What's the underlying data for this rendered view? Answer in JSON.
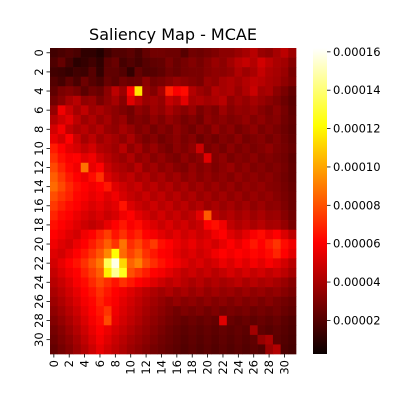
{
  "chart_data": {
    "type": "heatmap",
    "title": "Saliency Map - MCAE",
    "xlabel": "",
    "ylabel": "",
    "rows": 32,
    "cols": 32,
    "x_tick_labels": [
      "0",
      "2",
      "4",
      "6",
      "8",
      "10",
      "12",
      "14",
      "16",
      "18",
      "20",
      "22",
      "24",
      "26",
      "28",
      "30"
    ],
    "y_tick_labels": [
      "0",
      "2",
      "4",
      "6",
      "8",
      "10",
      "12",
      "14",
      "16",
      "18",
      "20",
      "22",
      "24",
      "26",
      "28",
      "30"
    ],
    "colormap": "hot",
    "colorbar": {
      "min": 2.5e-06,
      "max": 0.000162,
      "tick_labels": [
        "0.00002",
        "0.00004",
        "0.00006",
        "0.00008",
        "0.00010",
        "0.00012",
        "0.00014",
        "0.00016"
      ],
      "tick_values": [
        2e-05,
        4e-05,
        6e-05,
        8e-05,
        0.0001,
        0.00012,
        0.00014,
        0.00016
      ]
    },
    "values": [
      [
        1.5e-05,
        1.7e-05,
        1.9e-05,
        1.7e-05,
        1.1e-05,
        1.1e-05,
        8e-06,
        1.5e-05,
        1.9e-05,
        1.9e-05,
        2.1e-05,
        1.7e-05,
        2.3e-05,
        2.6e-05,
        2.6e-05,
        2.5e-05,
        2.5e-05,
        2e-05,
        2.6e-05,
        2.5e-05,
        2.7e-05,
        2.9e-05,
        3.2e-05,
        3.2e-05,
        3.5e-05,
        3.8e-05,
        4.2e-05,
        3.5e-05,
        3.3e-05,
        3.8e-05,
        4.3e-05,
        3.6e-05
      ],
      [
        1.8e-05,
        2.3e-05,
        1.6e-05,
        1e-05,
        1.2e-05,
        1.5e-05,
        1.1e-05,
        2.1e-05,
        2.4e-05,
        1.6e-05,
        1.9e-05,
        1.6e-05,
        2e-05,
        2.2e-05,
        2.3e-05,
        2.8e-05,
        2.4e-05,
        2.7e-05,
        3e-05,
        2.7e-05,
        3.1e-05,
        3.5e-05,
        3.2e-05,
        3.7e-05,
        4.2e-05,
        4.5e-05,
        4.1e-05,
        4.8e-05,
        4.3e-05,
        3.9e-05,
        3.7e-05,
        3.1e-05
      ],
      [
        1.5e-05,
        1.4e-05,
        1.2e-05,
        1.5e-05,
        1.4e-05,
        2e-05,
        1.2e-05,
        2.2e-05,
        2.2e-05,
        1.9e-05,
        1.2e-05,
        2.3e-05,
        1.9e-05,
        2e-05,
        2.2e-05,
        2.6e-05,
        2.4e-05,
        2.7e-05,
        2.8e-05,
        2.8e-05,
        3.1e-05,
        3.3e-05,
        3.2e-05,
        3.4e-05,
        4e-05,
        3.6e-05,
        3.9e-05,
        4.5e-05,
        4e-05,
        3.8e-05,
        3.5e-05,
        2.8e-05
      ],
      [
        1.9e-05,
        1.6e-05,
        2.2e-05,
        1.7e-05,
        2.5e-05,
        2e-05,
        1.7e-05,
        2.4e-05,
        2.1e-05,
        2.6e-05,
        2.4e-05,
        2.5e-05,
        3.2e-05,
        2.6e-05,
        2.8e-05,
        3.1e-05,
        3.4e-05,
        3.2e-05,
        3e-05,
        2.8e-05,
        3.5e-05,
        3.3e-05,
        3.8e-05,
        4e-05,
        3.7e-05,
        4.1e-05,
        4.4e-05,
        4.2e-05,
        3.9e-05,
        3.7e-05,
        3.3e-05,
        2.9e-05
      ],
      [
        2.2e-05,
        2.8e-05,
        3e-05,
        2.7e-05,
        2.1e-05,
        2.6e-05,
        2.4e-05,
        3.2e-05,
        4.3e-05,
        3.5e-05,
        6.2e-05,
        0.000115,
        3.4e-05,
        3e-05,
        3.8e-05,
        6.8e-05,
        5.7e-05,
        6.3e-05,
        4.1e-05,
        3.6e-05,
        3.3e-05,
        4.1e-05,
        3.8e-05,
        4e-05,
        3.5e-05,
        4e-05,
        4.6e-05,
        3.7e-05,
        3.9e-05,
        3.2e-05,
        2.8e-05,
        2.3e-05
      ],
      [
        2.6e-05,
        3.1e-05,
        3.8e-05,
        4.2e-05,
        3.3e-05,
        3.5e-05,
        2.8e-05,
        3.3e-05,
        3.8e-05,
        3.1e-05,
        5.1e-05,
        4.2e-05,
        3.5e-05,
        3.7e-05,
        3.4e-05,
        4.5e-05,
        4.1e-05,
        5.2e-05,
        3.8e-05,
        4e-05,
        3.7e-05,
        3.9e-05,
        4.2e-05,
        3.3e-05,
        3.7e-05,
        3.4e-05,
        3.8e-05,
        3.5e-05,
        3.2e-05,
        2.9e-05,
        2.5e-05,
        2.1e-05
      ],
      [
        3.4e-05,
        5.5e-05,
        4.6e-05,
        3.8e-05,
        4.4e-05,
        3.6e-05,
        3.9e-05,
        3.5e-05,
        3.2e-05,
        2.9e-05,
        2.6e-05,
        3.3e-05,
        3e-05,
        3.6e-05,
        3.3e-05,
        3.9e-05,
        3.4e-05,
        3.1e-05,
        3.5e-05,
        2.8e-05,
        3.2e-05,
        2.9e-05,
        3.6e-05,
        3.1e-05,
        3.4e-05,
        3.3e-05,
        3.5e-05,
        3.1e-05,
        2.8e-05,
        3.2e-05,
        2.7e-05,
        2.2e-05
      ],
      [
        4.1e-05,
        4.7e-05,
        5.2e-05,
        4.3e-05,
        3.6e-05,
        4e-05,
        3.4e-05,
        3.8e-05,
        3.2e-05,
        3.5e-05,
        2.7e-05,
        3e-05,
        2.8e-05,
        3.3e-05,
        2.9e-05,
        3.4e-05,
        3.1e-05,
        2.7e-05,
        3e-05,
        2.6e-05,
        3.3e-05,
        3e-05,
        3.2e-05,
        2.9e-05,
        3.1e-05,
        3.4e-05,
        3e-05,
        3.3e-05,
        2.9e-05,
        3.1e-05,
        2.6e-05,
        2.3e-05
      ],
      [
        4.8e-05,
        5.6e-05,
        4.4e-05,
        3.9e-05,
        4.2e-05,
        3.7e-05,
        4.1e-05,
        3.5e-05,
        3.3e-05,
        3.8e-05,
        3.4e-05,
        2.9e-05,
        3.2e-05,
        2.7e-05,
        3.1e-05,
        2.8e-05,
        3.3e-05,
        2.9e-05,
        2.6e-05,
        3.1e-05,
        2.8e-05,
        3.4e-05,
        2.9e-05,
        3.2e-05,
        2.7e-05,
        3e-05,
        3.3e-05,
        2.8e-05,
        3.1e-05,
        2.8e-05,
        2.5e-05,
        2.2e-05
      ],
      [
        5.3e-05,
        4.8e-05,
        5.9e-05,
        4.6e-05,
        3.8e-05,
        4.3e-05,
        3.6e-05,
        4e-05,
        3.7e-05,
        3.3e-05,
        3.9e-05,
        3.2e-05,
        2.8e-05,
        3.1e-05,
        2.6e-05,
        2.9e-05,
        3.2e-05,
        2.8e-05,
        3.1e-05,
        2.5e-05,
        2.9e-05,
        2.6e-05,
        3e-05,
        2.8e-05,
        3.2e-05,
        2.7e-05,
        2.9e-05,
        3.1e-05,
        2.7e-05,
        3e-05,
        2.6e-05,
        2.3e-05
      ],
      [
        6.7e-05,
        5.9e-05,
        5.2e-05,
        4.9e-05,
        4.4e-05,
        4.8e-05,
        4.1e-05,
        3.9e-05,
        3.6e-05,
        4.2e-05,
        3.3e-05,
        3.8e-05,
        3.1e-05,
        3.5e-05,
        3e-05,
        2.7e-05,
        3.2e-05,
        2.9e-05,
        3.3e-05,
        4.6e-05,
        2.8e-05,
        3.1e-05,
        2.7e-05,
        3.2e-05,
        2.8e-05,
        3.1e-05,
        2.8e-05,
        3e-05,
        3.3e-05,
        2.9e-05,
        2.7e-05,
        2.4e-05
      ],
      [
        7.2e-05,
        6.4e-05,
        5.7e-05,
        6.1e-05,
        5.2e-05,
        5.5e-05,
        4.7e-05,
        4.2e-05,
        3.8e-05,
        3.5e-05,
        4e-05,
        3.3e-05,
        3.6e-05,
        3.1e-05,
        3.4e-05,
        3e-05,
        2.8e-05,
        3.3e-05,
        2.9e-05,
        3.2e-05,
        5.1e-05,
        3e-05,
        3.3e-05,
        2.8e-05,
        3.1e-05,
        2.9e-05,
        3.2e-05,
        2.8e-05,
        3e-05,
        2.8e-05,
        2.6e-05,
        2.2e-05
      ],
      [
        7.8e-05,
        6.9e-05,
        6.2e-05,
        5.5e-05,
        8.8e-05,
        5.3e-05,
        5.8e-05,
        4.6e-05,
        4.1e-05,
        3.9e-05,
        3.6e-05,
        4.2e-05,
        3.4e-05,
        3.7e-05,
        3.2e-05,
        3.5e-05,
        3.1e-05,
        2.9e-05,
        3.4e-05,
        3e-05,
        3.3e-05,
        2.9e-05,
        3.2e-05,
        3.5e-05,
        3e-05,
        3.3e-05,
        2.9e-05,
        3.1e-05,
        2.8e-05,
        3e-05,
        2.7e-05,
        2.3e-05
      ],
      [
        8.3e-05,
        7.4e-05,
        6.6e-05,
        6e-05,
        5.4e-05,
        6.3e-05,
        7.2e-05,
        5e-05,
        4.5e-05,
        4.1e-05,
        4.4e-05,
        3.8e-05,
        4.1e-05,
        3.6e-05,
        3.9e-05,
        3.4e-05,
        3.7e-05,
        3.2e-05,
        3.5e-05,
        3.1e-05,
        3.4e-05,
        3.1e-05,
        3.3e-05,
        3e-05,
        3.4e-05,
        3.1e-05,
        3.3e-05,
        3e-05,
        3.2e-05,
        2.9e-05,
        2.6e-05,
        2.3e-05
      ],
      [
        8.6e-05,
        7.8e-05,
        7e-05,
        6.4e-05,
        5.9e-05,
        5.5e-05,
        6e-05,
        6.6e-05,
        5.1e-05,
        4.7e-05,
        4.3e-05,
        4.6e-05,
        4e-05,
        4.3e-05,
        3.8e-05,
        4.1e-05,
        3.6e-05,
        3.9e-05,
        3.4e-05,
        3.7e-05,
        3.3e-05,
        3.6e-05,
        3.2e-05,
        3.5e-05,
        3.1e-05,
        3.4e-05,
        3.2e-05,
        3.4e-05,
        3.1e-05,
        3e-05,
        2.7e-05,
        2.4e-05
      ],
      [
        7.9e-05,
        7.3e-05,
        6.8e-05,
        6.2e-05,
        5.7e-05,
        5.3e-05,
        5.6e-05,
        5.1e-05,
        5.5e-05,
        4.9e-05,
        4.5e-05,
        4.2e-05,
        4.6e-05,
        4.1e-05,
        4.4e-05,
        3.9e-05,
        4.2e-05,
        3.7e-05,
        4e-05,
        3.5e-05,
        3.8e-05,
        3.4e-05,
        3.7e-05,
        3.3e-05,
        3.6e-05,
        3.2e-05,
        3.5e-05,
        3.2e-05,
        3.4e-05,
        3.1e-05,
        2.8e-05,
        2.5e-05
      ],
      [
        7.4e-05,
        6.8e-05,
        6.3e-05,
        5.8e-05,
        5.4e-05,
        5e-05,
        5.3e-05,
        4.9e-05,
        5.2e-05,
        6.5e-05,
        5e-05,
        4.6e-05,
        4.3e-05,
        4.7e-05,
        4.2e-05,
        4.5e-05,
        4e-05,
        4.3e-05,
        3.8e-05,
        4.1e-05,
        3.6e-05,
        3.9e-05,
        3.5e-05,
        3.8e-05,
        3.4e-05,
        3.7e-05,
        3.3e-05,
        3.6e-05,
        3.2e-05,
        3.3e-05,
        2.9e-05,
        2.5e-05
      ],
      [
        6.9e-05,
        6.3e-05,
        5.9e-05,
        5.4e-05,
        5e-05,
        4.7e-05,
        5e-05,
        4.6e-05,
        4.9e-05,
        5.5e-05,
        6.1e-05,
        5.2e-05,
        4.8e-05,
        4.4e-05,
        4.8e-05,
        4.3e-05,
        4.6e-05,
        4.1e-05,
        4.4e-05,
        5.2e-05,
        8.2e-05,
        4.2e-05,
        3.8e-05,
        4.1e-05,
        3.7e-05,
        4e-05,
        3.6e-05,
        3.9e-05,
        3.5e-05,
        3.6e-05,
        3.1e-05,
        2.6e-05
      ],
      [
        6.4e-05,
        5.9e-05,
        5.5e-05,
        5.1e-05,
        4.7e-05,
        4.4e-05,
        4.7e-05,
        5.3e-05,
        5.9e-05,
        6.6e-05,
        5.7e-05,
        6.3e-05,
        5.4e-05,
        5e-05,
        4.6e-05,
        5e-05,
        4.5e-05,
        4.8e-05,
        4.3e-05,
        4.6e-05,
        5.8e-05,
        6.4e-05,
        5.5e-05,
        4.4e-05,
        4e-05,
        4.3e-05,
        3.9e-05,
        4.2e-05,
        3.8e-05,
        3.9e-05,
        3.4e-05,
        2.8e-05
      ],
      [
        5.9e-05,
        5.5e-05,
        5.1e-05,
        4.8e-05,
        5.5e-05,
        6.1e-05,
        6.8e-05,
        7.5e-05,
        6.5e-05,
        7.2e-05,
        6.4e-05,
        6.9e-05,
        6.1e-05,
        5.6e-05,
        5.2e-05,
        4.8e-05,
        5.2e-05,
        4.7e-05,
        5e-05,
        4.6e-05,
        4.9e-05,
        5.5e-05,
        6e-05,
        5.1e-05,
        4.7e-05,
        5.2e-05,
        5.7e-05,
        6.3e-05,
        5.4e-05,
        5.9e-05,
        5e-05,
        4.3e-05
      ],
      [
        5.5e-05,
        5.1e-05,
        4.8e-05,
        5.4e-05,
        6e-05,
        6.7e-05,
        7.4e-05,
        8.3e-05,
        7.3e-05,
        8.8e-05,
        7.1e-05,
        7.7e-05,
        6.8e-05,
        7.4e-05,
        6.4e-05,
        5.9e-05,
        5.4e-05,
        5e-05,
        5.4e-05,
        4.9e-05,
        5.2e-05,
        4.8e-05,
        5.3e-05,
        5.8e-05,
        5.3e-05,
        5.9e-05,
        6.6e-05,
        6e-05,
        6.7e-05,
        7.3e-05,
        6.3e-05,
        5.5e-05
      ],
      [
        5.1e-05,
        4.8e-05,
        5.3e-05,
        5.9e-05,
        6.6e-05,
        7.3e-05,
        8.1e-05,
        9.3e-05,
        0.000122,
        8.6e-05,
        7.6e-05,
        8.3e-05,
        7.2e-05,
        6.6e-05,
        6.1e-05,
        5.7e-05,
        5.2e-05,
        4.8e-05,
        5.1e-05,
        4.7e-05,
        5e-05,
        5.5e-05,
        6.1e-05,
        5.5e-05,
        6.1e-05,
        5.6e-05,
        6.2e-05,
        5.7e-05,
        6.3e-05,
        6.9e-05,
        6e-05,
        5.2e-05
      ],
      [
        4.8e-05,
        5.3e-05,
        5.9e-05,
        6.5e-05,
        7.2e-05,
        8e-05,
        8.9e-05,
        0.000135,
        0.000158,
        0.000112,
        8.4e-05,
        9.1e-05,
        7.8e-05,
        7.1e-05,
        6.5e-05,
        6e-05,
        5.5e-05,
        5.1e-05,
        4.7e-05,
        5e-05,
        4.6e-05,
        4.9e-05,
        5.4e-05,
        5e-05,
        5.5e-05,
        5.1e-05,
        5.6e-05,
        5.2e-05,
        5.7e-05,
        5.3e-05,
        4.8e-05,
        4.2e-05
      ],
      [
        4.5e-05,
        5e-05,
        5.5e-05,
        6.1e-05,
        6.8e-05,
        7.5e-05,
        8.3e-05,
        0.000118,
        0.000145,
        0.000126,
        7.9e-05,
        7.3e-05,
        6.7e-05,
        6.1e-05,
        5.6e-05,
        5.2e-05,
        4.8e-05,
        4.4e-05,
        4.7e-05,
        4.3e-05,
        4.6e-05,
        4.2e-05,
        4.5e-05,
        4.9e-05,
        4.5e-05,
        4.9e-05,
        4.5e-05,
        4.8e-05,
        4.4e-05,
        4.7e-05,
        4.3e-05,
        3.8e-05
      ],
      [
        4.2e-05,
        4.6e-05,
        5.1e-05,
        5.7e-05,
        6.3e-05,
        7e-05,
        7.7e-05,
        7.1e-05,
        6.5e-05,
        7.2e-05,
        6.6e-05,
        6e-05,
        5.5e-05,
        5.1e-05,
        4.7e-05,
        4.3e-05,
        4.6e-05,
        4.2e-05,
        3.9e-05,
        4.2e-05,
        3.8e-05,
        4.1e-05,
        3.8e-05,
        4e-05,
        4.3e-05,
        3.9e-05,
        4.2e-05,
        3.9e-05,
        4.1e-05,
        3.8e-05,
        3.5e-05,
        3.1e-05
      ],
      [
        3.9e-05,
        4.3e-05,
        4.8e-05,
        5.3e-05,
        5.9e-05,
        6.5e-05,
        7.2e-05,
        6.6e-05,
        6e-05,
        5.5e-05,
        5.1e-05,
        4.7e-05,
        4.3e-05,
        4e-05,
        3.7e-05,
        4e-05,
        3.6e-05,
        3.9e-05,
        3.5e-05,
        3.8e-05,
        3.4e-05,
        3.7e-05,
        3.4e-05,
        3.6e-05,
        3.3e-05,
        3.6e-05,
        3.3e-05,
        3.5e-05,
        3.2e-05,
        3.4e-05,
        3.1e-05,
        2.8e-05
      ],
      [
        3.6e-05,
        4e-05,
        4.5e-05,
        5e-05,
        5.6e-05,
        6.2e-05,
        6.9e-05,
        6.3e-05,
        5.7e-05,
        5.2e-05,
        4.8e-05,
        4.4e-05,
        4e-05,
        3.7e-05,
        3.4e-05,
        3.1e-05,
        3.4e-05,
        3.1e-05,
        3.3e-05,
        3e-05,
        3.3e-05,
        3e-05,
        3.2e-05,
        2.9e-05,
        3.2e-05,
        2.9e-05,
        3.1e-05,
        2.8e-05,
        3.1e-05,
        2.8e-05,
        2.6e-05,
        2.4e-05
      ],
      [
        3.3e-05,
        3.7e-05,
        4.2e-05,
        4.7e-05,
        5.3e-05,
        5.9e-05,
        6.6e-05,
        7.3e-05,
        5.5e-05,
        5e-05,
        4.6e-05,
        4.2e-05,
        3.8e-05,
        3.5e-05,
        3.2e-05,
        2.9e-05,
        2.6e-05,
        2.9e-05,
        2.7e-05,
        2.9e-05,
        2.6e-05,
        2.9e-05,
        2.6e-05,
        2.8e-05,
        2.6e-05,
        2.8e-05,
        2.5e-05,
        2.7e-05,
        2.5e-05,
        2.7e-05,
        2.4e-05,
        2.2e-05
      ],
      [
        3e-05,
        3.4e-05,
        3.9e-05,
        4.4e-05,
        5e-05,
        5.6e-05,
        6.3e-05,
        7.8e-05,
        5.3e-05,
        4.8e-05,
        4.4e-05,
        4e-05,
        3.6e-05,
        3.3e-05,
        3e-05,
        2.7e-05,
        2.5e-05,
        2.3e-05,
        2.5e-05,
        2.3e-05,
        2.5e-05,
        2.3e-05,
        5.1e-05,
        2.4e-05,
        2.2e-05,
        2.4e-05,
        2.2e-05,
        2.4e-05,
        2.2e-05,
        2.4e-05,
        2.1e-05,
        1.9e-05
      ],
      [
        2.7e-05,
        3.1e-05,
        3.6e-05,
        4.1e-05,
        4.7e-05,
        5.3e-05,
        6e-05,
        5.4e-05,
        4.9e-05,
        4.5e-05,
        4.1e-05,
        3.7e-05,
        3.4e-05,
        3.1e-05,
        2.8e-05,
        2.5e-05,
        2.3e-05,
        2.1e-05,
        2.3e-05,
        2.1e-05,
        2.3e-05,
        2.1e-05,
        2.3e-05,
        2.1e-05,
        2.3e-05,
        2.1e-05,
        3.7e-05,
        2.2e-05,
        2e-05,
        2.2e-05,
        2e-05,
        1.8e-05
      ],
      [
        2.5e-05,
        2.9e-05,
        3.3e-05,
        3.8e-05,
        4.4e-05,
        5e-05,
        5.6e-05,
        5.1e-05,
        4.6e-05,
        4.2e-05,
        3.8e-05,
        3.5e-05,
        3.2e-05,
        2.9e-05,
        2.6e-05,
        2.4e-05,
        2.2e-05,
        2e-05,
        2.2e-05,
        2e-05,
        2.2e-05,
        2e-05,
        2.2e-05,
        2e-05,
        2.2e-05,
        2e-05,
        2.2e-05,
        3.4e-05,
        3.9e-05,
        2.1e-05,
        1.9e-05,
        1.7e-05
      ],
      [
        2.3e-05,
        2.7e-05,
        3.1e-05,
        3.6e-05,
        4.1e-05,
        4.7e-05,
        5.3e-05,
        4.8e-05,
        4.4e-05,
        4e-05,
        3.6e-05,
        3.3e-05,
        3e-05,
        2.7e-05,
        2.5e-05,
        2.3e-05,
        2.1e-05,
        1.9e-05,
        2.1e-05,
        1.9e-05,
        2.1e-05,
        1.9e-05,
        2.1e-05,
        1.9e-05,
        2.1e-05,
        1.9e-05,
        2.1e-05,
        1.9e-05,
        3.5e-05,
        4.1e-05,
        1.8e-05,
        1.6e-05
      ]
    ]
  }
}
